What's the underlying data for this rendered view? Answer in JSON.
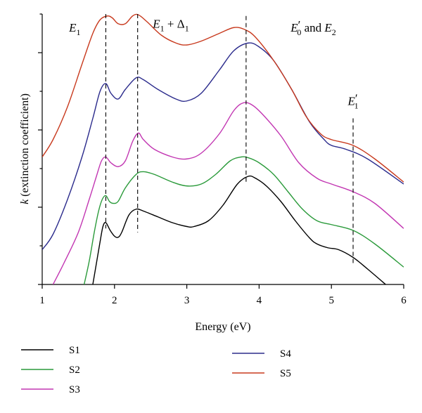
{
  "chart_data": {
    "type": "line",
    "xlabel": "Energy (eV)",
    "ylabel": "k (extinction coefficient)",
    "xlim": [
      1,
      6
    ],
    "ylim": [
      0,
      7
    ],
    "x_ticks": [
      "1",
      "2",
      "3",
      "4",
      "5",
      "6"
    ],
    "y_ticks_labeled": false,
    "grid": false,
    "legend_placement": "bottom",
    "series": [
      {
        "name": "S1",
        "color": "#000000",
        "points": [
          [
            1.7,
            0.0
          ],
          [
            1.75,
            0.55
          ],
          [
            1.8,
            1.1
          ],
          [
            1.84,
            1.5
          ],
          [
            1.88,
            1.6
          ],
          [
            1.94,
            1.4
          ],
          [
            2.0,
            1.25
          ],
          [
            2.05,
            1.22
          ],
          [
            2.1,
            1.35
          ],
          [
            2.2,
            1.8
          ],
          [
            2.3,
            1.95
          ],
          [
            2.4,
            1.9
          ],
          [
            2.6,
            1.75
          ],
          [
            2.8,
            1.6
          ],
          [
            3.0,
            1.5
          ],
          [
            3.1,
            1.5
          ],
          [
            3.3,
            1.65
          ],
          [
            3.5,
            2.05
          ],
          [
            3.7,
            2.6
          ],
          [
            3.85,
            2.8
          ],
          [
            3.95,
            2.75
          ],
          [
            4.1,
            2.55
          ],
          [
            4.3,
            2.15
          ],
          [
            4.5,
            1.65
          ],
          [
            4.7,
            1.2
          ],
          [
            4.8,
            1.05
          ],
          [
            4.95,
            0.95
          ],
          [
            5.1,
            0.9
          ],
          [
            5.3,
            0.7
          ],
          [
            5.5,
            0.4
          ],
          [
            5.75,
            0.0
          ]
        ]
      },
      {
        "name": "S2",
        "color": "#2a9a3a",
        "points": [
          [
            1.58,
            0.0
          ],
          [
            1.65,
            0.6
          ],
          [
            1.72,
            1.35
          ],
          [
            1.78,
            1.9
          ],
          [
            1.83,
            2.2
          ],
          [
            1.88,
            2.3
          ],
          [
            1.93,
            2.15
          ],
          [
            1.98,
            2.1
          ],
          [
            2.05,
            2.15
          ],
          [
            2.15,
            2.5
          ],
          [
            2.3,
            2.85
          ],
          [
            2.4,
            2.92
          ],
          [
            2.55,
            2.85
          ],
          [
            2.8,
            2.65
          ],
          [
            3.0,
            2.55
          ],
          [
            3.2,
            2.6
          ],
          [
            3.4,
            2.85
          ],
          [
            3.6,
            3.2
          ],
          [
            3.75,
            3.3
          ],
          [
            3.85,
            3.28
          ],
          [
            4.0,
            3.15
          ],
          [
            4.2,
            2.85
          ],
          [
            4.4,
            2.4
          ],
          [
            4.6,
            1.95
          ],
          [
            4.8,
            1.65
          ],
          [
            5.0,
            1.55
          ],
          [
            5.3,
            1.4
          ],
          [
            5.6,
            1.05
          ],
          [
            6.0,
            0.45
          ]
        ]
      },
      {
        "name": "S3",
        "color": "#c236b2",
        "points": [
          [
            1.15,
            0.0
          ],
          [
            1.3,
            0.55
          ],
          [
            1.5,
            1.35
          ],
          [
            1.65,
            2.2
          ],
          [
            1.75,
            2.8
          ],
          [
            1.82,
            3.2
          ],
          [
            1.88,
            3.3
          ],
          [
            1.95,
            3.15
          ],
          [
            2.05,
            3.05
          ],
          [
            2.15,
            3.2
          ],
          [
            2.25,
            3.7
          ],
          [
            2.33,
            3.92
          ],
          [
            2.4,
            3.75
          ],
          [
            2.55,
            3.5
          ],
          [
            2.8,
            3.3
          ],
          [
            3.0,
            3.25
          ],
          [
            3.2,
            3.4
          ],
          [
            3.45,
            3.9
          ],
          [
            3.65,
            4.5
          ],
          [
            3.78,
            4.7
          ],
          [
            3.9,
            4.65
          ],
          [
            4.05,
            4.4
          ],
          [
            4.3,
            3.85
          ],
          [
            4.55,
            3.15
          ],
          [
            4.8,
            2.75
          ],
          [
            5.0,
            2.6
          ],
          [
            5.3,
            2.4
          ],
          [
            5.6,
            2.1
          ],
          [
            6.0,
            1.45
          ]
        ]
      },
      {
        "name": "S4",
        "color": "#2b2b8c",
        "points": [
          [
            1.0,
            0.9
          ],
          [
            1.15,
            1.3
          ],
          [
            1.35,
            2.2
          ],
          [
            1.55,
            3.3
          ],
          [
            1.7,
            4.3
          ],
          [
            1.8,
            5.0
          ],
          [
            1.88,
            5.2
          ],
          [
            1.95,
            4.95
          ],
          [
            2.05,
            4.8
          ],
          [
            2.15,
            5.05
          ],
          [
            2.3,
            5.35
          ],
          [
            2.4,
            5.3
          ],
          [
            2.6,
            5.05
          ],
          [
            2.85,
            4.8
          ],
          [
            3.0,
            4.75
          ],
          [
            3.2,
            4.95
          ],
          [
            3.45,
            5.55
          ],
          [
            3.65,
            6.05
          ],
          [
            3.85,
            6.25
          ],
          [
            4.0,
            6.15
          ],
          [
            4.2,
            5.8
          ],
          [
            4.45,
            5.05
          ],
          [
            4.7,
            4.2
          ],
          [
            4.9,
            3.75
          ],
          [
            5.0,
            3.6
          ],
          [
            5.2,
            3.5
          ],
          [
            5.5,
            3.25
          ],
          [
            6.0,
            2.6
          ]
        ]
      },
      {
        "name": "S5",
        "color": "#c83a1e",
        "points": [
          [
            1.0,
            3.3
          ],
          [
            1.15,
            3.75
          ],
          [
            1.35,
            4.6
          ],
          [
            1.55,
            5.7
          ],
          [
            1.7,
            6.5
          ],
          [
            1.8,
            6.85
          ],
          [
            1.9,
            6.95
          ],
          [
            1.97,
            6.9
          ],
          [
            2.05,
            6.75
          ],
          [
            2.15,
            6.75
          ],
          [
            2.25,
            6.95
          ],
          [
            2.33,
            6.98
          ],
          [
            2.45,
            6.8
          ],
          [
            2.65,
            6.45
          ],
          [
            2.85,
            6.25
          ],
          [
            3.0,
            6.2
          ],
          [
            3.2,
            6.3
          ],
          [
            3.45,
            6.5
          ],
          [
            3.65,
            6.65
          ],
          [
            3.8,
            6.6
          ],
          [
            3.95,
            6.4
          ],
          [
            4.2,
            5.8
          ],
          [
            4.45,
            5.05
          ],
          [
            4.65,
            4.35
          ],
          [
            4.85,
            3.9
          ],
          [
            5.0,
            3.75
          ],
          [
            5.3,
            3.6
          ],
          [
            5.6,
            3.25
          ],
          [
            6.0,
            2.65
          ]
        ]
      }
    ],
    "annotations": [
      {
        "text": "E1",
        "x_line": 1.88,
        "x_text": 1.45,
        "y_text": 6.55,
        "line_from": 1.45,
        "line_to": 7.0
      },
      {
        "text": "E1 + Δ1",
        "x_line": 2.32,
        "x_text": 2.78,
        "y_text": 6.65,
        "line_from": 1.35,
        "line_to": 7.0
      },
      {
        "text": "E′0 and E2",
        "x_line": 3.82,
        "x_text": 4.75,
        "y_text": 6.55,
        "line_from": 2.65,
        "line_to": 6.95
      },
      {
        "text": "E′1",
        "x_line": 5.3,
        "x_text": 5.3,
        "y_text": 4.65,
        "line_from": 0.55,
        "line_to": 4.3
      }
    ]
  },
  "legend": [
    {
      "label": "S1",
      "color": "#000000"
    },
    {
      "label": "S2",
      "color": "#2a9a3a"
    },
    {
      "label": "S3",
      "color": "#c236b2"
    },
    {
      "label": "S4",
      "color": "#2b2b8c"
    },
    {
      "label": "S5",
      "color": "#c83a1e"
    }
  ]
}
